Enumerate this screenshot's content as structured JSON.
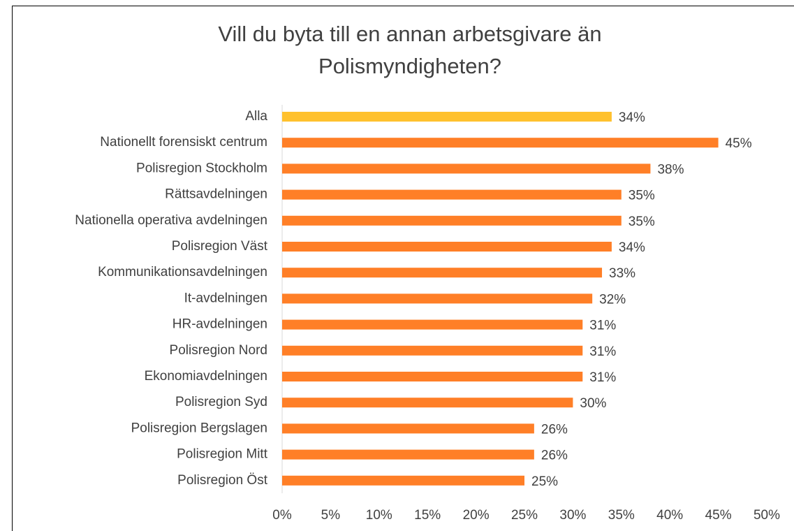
{
  "chart_data": {
    "type": "bar",
    "orientation": "horizontal",
    "title": "Vill du byta till en annan arbetsgivare än Polismyndigheten?",
    "categories": [
      "Alla",
      "Nationellt forensiskt centrum",
      "Polisregion Stockholm",
      "Rättsavdelningen",
      "Nationella operativa avdelningen",
      "Polisregion Väst",
      "Kommunikationsavdelningen",
      "It-avdelningen",
      "HR-avdelningen",
      "Polisregion Nord",
      "Ekonomiavdelningen",
      "Polisregion Syd",
      "Polisregion Bergslagen",
      "Polisregion Mitt",
      "Polisregion Öst"
    ],
    "values": [
      34,
      45,
      38,
      35,
      35,
      34,
      33,
      32,
      31,
      31,
      31,
      30,
      26,
      26,
      25
    ],
    "value_labels": [
      "34%",
      "45%",
      "38%",
      "35%",
      "35%",
      "34%",
      "33%",
      "32%",
      "31%",
      "31%",
      "31%",
      "30%",
      "26%",
      "26%",
      "25%"
    ],
    "colors": [
      "#FFC12E",
      "#FF7F27",
      "#FF7F27",
      "#FF7F27",
      "#FF7F27",
      "#FF7F27",
      "#FF7F27",
      "#FF7F27",
      "#FF7F27",
      "#FF7F27",
      "#FF7F27",
      "#FF7F27",
      "#FF7F27",
      "#FF7F27",
      "#FF7F27"
    ],
    "xlim": [
      0,
      50
    ],
    "xticks": [
      {
        "value": 0,
        "label": "0%"
      },
      {
        "value": 5,
        "label": "5%"
      },
      {
        "value": 10,
        "label": "10%"
      },
      {
        "value": 15,
        "label": "15%"
      },
      {
        "value": 20,
        "label": "20%"
      },
      {
        "value": 25,
        "label": "25%"
      },
      {
        "value": 30,
        "label": "30%"
      },
      {
        "value": 35,
        "label": "35%"
      },
      {
        "value": 40,
        "label": "40%"
      },
      {
        "value": 45,
        "label": "45%"
      },
      {
        "value": 50,
        "label": "50%"
      }
    ],
    "grid": false
  }
}
